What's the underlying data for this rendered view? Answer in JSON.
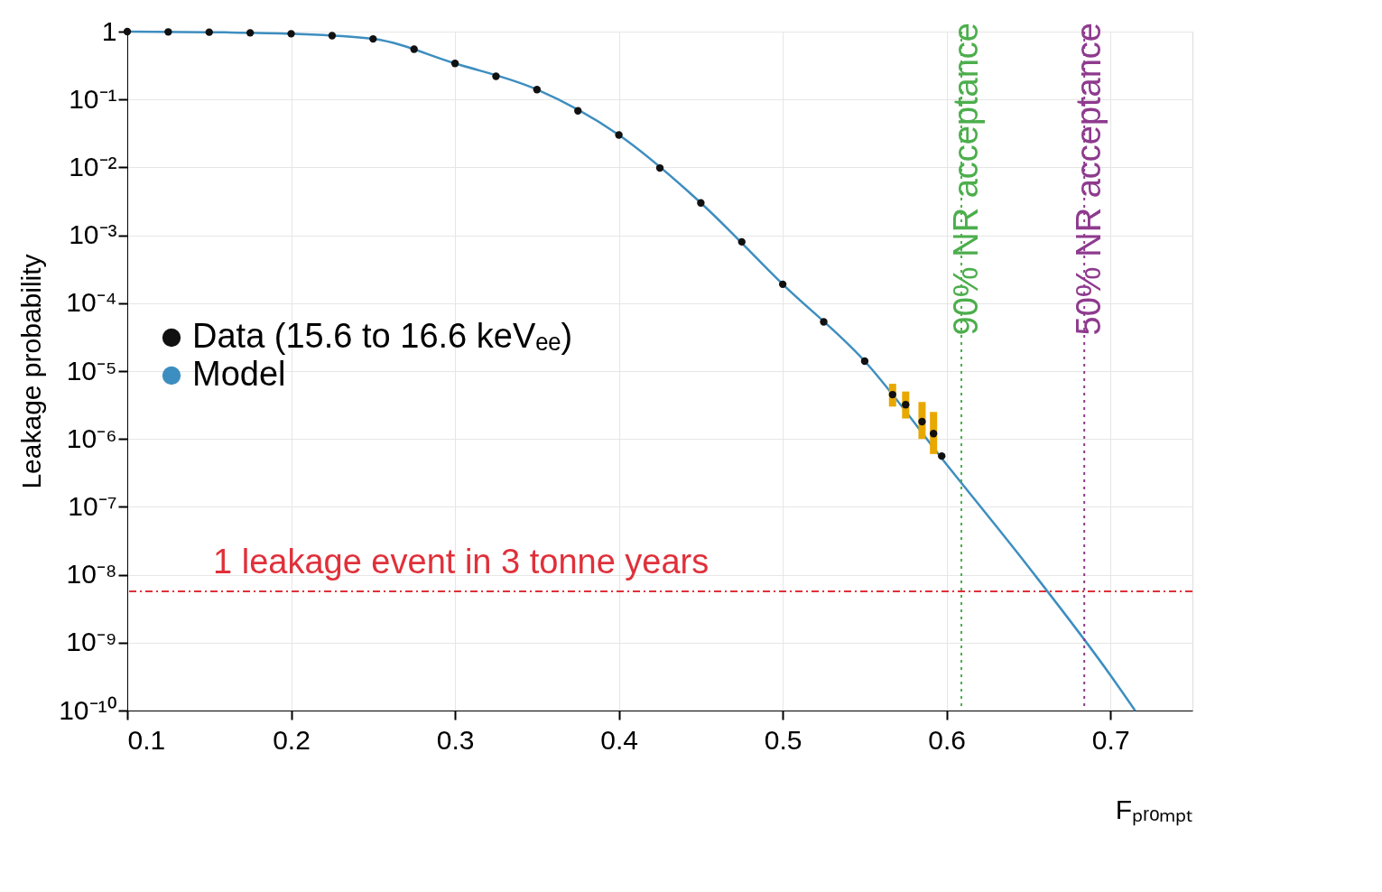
{
  "chart_data": {
    "type": "scatter",
    "xlabel": "Fₚᵣₒₘₚₜ",
    "ylabel": "Leakage probability",
    "xlim": [
      0.1,
      0.75
    ],
    "xticks": [
      0.1,
      0.2,
      0.3,
      0.4,
      0.5,
      0.6,
      0.7
    ],
    "ylim": [
      1e-10,
      1
    ],
    "log": "y",
    "yticks": [
      {
        "value": 1,
        "label": "1"
      },
      {
        "value": 0.1,
        "label": "10⁻¹"
      },
      {
        "value": 0.01,
        "label": "10⁻²"
      },
      {
        "value": 0.001,
        "label": "10⁻³"
      },
      {
        "value": 0.0001,
        "label": "10⁻⁴"
      },
      {
        "value": 1e-05,
        "label": "10⁻⁵"
      },
      {
        "value": 1e-06,
        "label": "10⁻⁶"
      },
      {
        "value": 1e-07,
        "label": "10⁻⁷"
      },
      {
        "value": 1e-08,
        "label": "10⁻⁸"
      },
      {
        "value": 1e-09,
        "label": "10⁻⁹"
      },
      {
        "value": 1e-10,
        "label": "10⁻¹⁰"
      }
    ],
    "grid": true,
    "legend": "left",
    "series": [
      {
        "name": "Data (15.6 to 16.6 keVₑₑ)",
        "marker": "circle",
        "color": "#111111",
        "x": [
          0.1,
          0.125,
          0.15,
          0.175,
          0.2,
          0.225,
          0.25,
          0.275,
          0.3,
          0.325,
          0.35,
          0.375,
          0.4,
          0.425,
          0.45,
          0.475,
          0.5,
          0.525,
          0.55,
          0.567,
          0.575,
          0.585,
          0.592,
          0.597
        ],
        "values": [
          1,
          0.99,
          0.98,
          0.96,
          0.93,
          0.87,
          0.78,
          0.55,
          0.34,
          0.22,
          0.14,
          0.068,
          0.03,
          0.0098,
          0.003,
          0.0008,
          0.00019,
          5.3e-05,
          1.4e-05,
          4.5e-06,
          3.2e-06,
          1.8e-06,
          1.2e-06,
          5.6e-07
        ],
        "errors": [
          null,
          null,
          null,
          null,
          null,
          null,
          null,
          null,
          null,
          null,
          null,
          null,
          null,
          null,
          null,
          null,
          null,
          null,
          null,
          [
            3e-06,
            6.5e-06
          ],
          [
            2e-06,
            5e-06
          ],
          [
            1e-06,
            3.5e-06
          ],
          [
            6e-07,
            2.5e-06
          ],
          null
        ]
      },
      {
        "name": "Model",
        "type": "line",
        "color": "#3d8ec0",
        "line_style": "solid",
        "x": [
          0.1,
          0.15,
          0.2,
          0.25,
          0.3,
          0.35,
          0.4,
          0.45,
          0.5,
          0.55,
          0.6,
          0.65,
          0.7,
          0.715
        ],
        "values": [
          1,
          0.98,
          0.93,
          0.78,
          0.34,
          0.14,
          0.03,
          0.003,
          0.00019,
          1.4e-05,
          4.2e-07,
          1.3e-08,
          3.3e-10,
          1e-10
        ]
      }
    ],
    "ref_lines": [
      {
        "axis": "y",
        "value": 5.7e-09,
        "label": "1 leakage event in 3 tonne years",
        "color": "#e0303a",
        "line_style": "dashdot"
      },
      {
        "axis": "x",
        "value": 0.609,
        "label": "90% NR acceptance",
        "color": "#4cae4c",
        "line_style": "dotted"
      },
      {
        "axis": "x",
        "value": 0.684,
        "label": "50% NR acceptance",
        "color": "#8e3a8e",
        "line_style": "dotted"
      }
    ]
  }
}
